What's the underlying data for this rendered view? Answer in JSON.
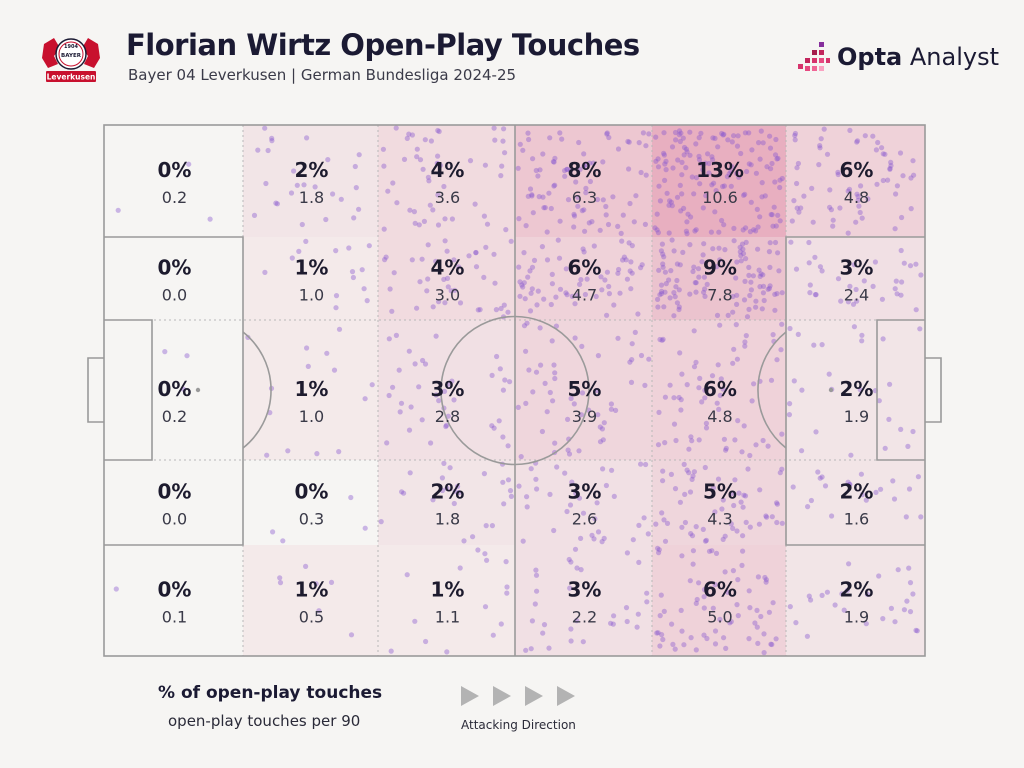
{
  "header": {
    "title": "Florian Wirtz Open-Play Touches",
    "subtitle": "Bayer 04 Leverkusen | German Bundesliga 2024-25",
    "brand_opta": "Opta",
    "brand_analyst": "Analyst",
    "club_logo": {
      "icon": "bayer-leverkusen-crest-icon",
      "year": "1904",
      "name": "BAYER",
      "banner": "Leverkusen"
    }
  },
  "colors": {
    "background": "#f6f5f3",
    "heat_max": "#e4a0b4",
    "dots": "#8a5ad0",
    "lines": "#9a9a9a"
  },
  "chart_data": {
    "type": "heatmap",
    "attacking_direction": "left-to-right",
    "columns": 6,
    "rows": 5,
    "percent_labels": [
      [
        "0%",
        "2%",
        "4%",
        "8%",
        "13%",
        "6%"
      ],
      [
        "0%",
        "1%",
        "4%",
        "6%",
        "9%",
        "3%"
      ],
      [
        "0%",
        "1%",
        "3%",
        "5%",
        "6%",
        "2%"
      ],
      [
        "0%",
        "0%",
        "2%",
        "3%",
        "5%",
        "2%"
      ],
      [
        "0%",
        "1%",
        "1%",
        "3%",
        "6%",
        "2%"
      ]
    ],
    "per90_labels": [
      [
        "0.2",
        "1.8",
        "3.6",
        "6.3",
        "10.6",
        "4.8"
      ],
      [
        "0.0",
        "1.0",
        "3.0",
        "4.7",
        "7.8",
        "2.4"
      ],
      [
        "0.2",
        "1.0",
        "2.8",
        "3.9",
        "4.8",
        "1.9"
      ],
      [
        "0.0",
        "0.3",
        "1.8",
        "2.6",
        "4.3",
        "1.6"
      ],
      [
        "0.1",
        "0.5",
        "1.1",
        "2.2",
        "5.0",
        "1.9"
      ]
    ],
    "percent_values": [
      [
        0,
        2,
        4,
        8,
        13,
        6
      ],
      [
        0,
        1,
        4,
        6,
        9,
        3
      ],
      [
        0,
        1,
        3,
        5,
        6,
        2
      ],
      [
        0,
        0,
        2,
        3,
        5,
        2
      ],
      [
        0,
        1,
        1,
        3,
        6,
        2
      ]
    ],
    "per90_values": [
      [
        0.2,
        1.8,
        3.6,
        6.3,
        10.6,
        4.8
      ],
      [
        0.0,
        1.0,
        3.0,
        4.7,
        7.8,
        2.4
      ],
      [
        0.2,
        1.0,
        2.8,
        3.9,
        4.8,
        1.9
      ],
      [
        0.0,
        0.3,
        1.8,
        2.6,
        4.3,
        1.6
      ],
      [
        0.1,
        0.5,
        1.1,
        2.2,
        5.0,
        1.9
      ]
    ]
  },
  "legend": {
    "primary": "% of open-play touches",
    "secondary": "open-play touches per 90",
    "direction_label": "Attacking Direction",
    "direction_icon": "play-arrow-icon"
  }
}
